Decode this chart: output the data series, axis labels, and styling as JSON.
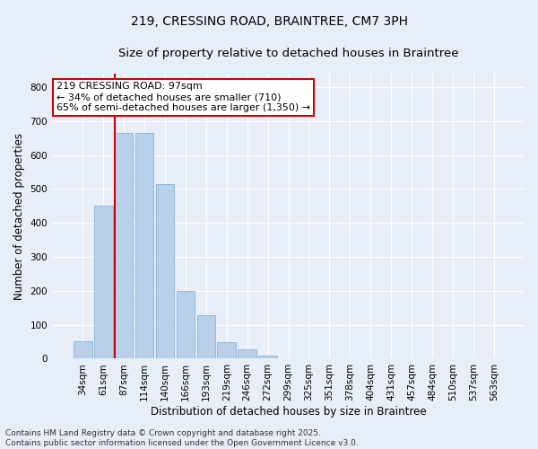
{
  "title_line1": "219, CRESSING ROAD, BRAINTREE, CM7 3PH",
  "title_line2": "Size of property relative to detached houses in Braintree",
  "xlabel": "Distribution of detached houses by size in Braintree",
  "ylabel": "Number of detached properties",
  "categories": [
    "34sqm",
    "61sqm",
    "87sqm",
    "114sqm",
    "140sqm",
    "166sqm",
    "193sqm",
    "219sqm",
    "246sqm",
    "272sqm",
    "299sqm",
    "325sqm",
    "351sqm",
    "378sqm",
    "404sqm",
    "431sqm",
    "457sqm",
    "484sqm",
    "510sqm",
    "537sqm",
    "563sqm"
  ],
  "values": [
    52,
    452,
    665,
    665,
    515,
    200,
    127,
    50,
    28,
    8,
    2,
    0,
    0,
    0,
    0,
    0,
    0,
    0,
    0,
    0,
    0
  ],
  "bar_color": "#b8d0ea",
  "bar_edge_color": "#7aaad0",
  "vline_color": "#cc0000",
  "vline_x_index": 2,
  "annotation_text": "219 CRESSING ROAD: 97sqm\n← 34% of detached houses are smaller (710)\n65% of semi-detached houses are larger (1,350) →",
  "annotation_box_color": "#ffffff",
  "annotation_box_edge": "#cc0000",
  "ylim": [
    0,
    840
  ],
  "yticks": [
    0,
    100,
    200,
    300,
    400,
    500,
    600,
    700,
    800
  ],
  "bg_color": "#e8eef8",
  "grid_color": "#ffffff",
  "footer_line1": "Contains HM Land Registry data © Crown copyright and database right 2025.",
  "footer_line2": "Contains public sector information licensed under the Open Government Licence v3.0.",
  "title_fontsize": 10,
  "subtitle_fontsize": 9.5,
  "axis_label_fontsize": 8.5,
  "tick_fontsize": 7.5,
  "annotation_fontsize": 8,
  "footer_fontsize": 6.5
}
